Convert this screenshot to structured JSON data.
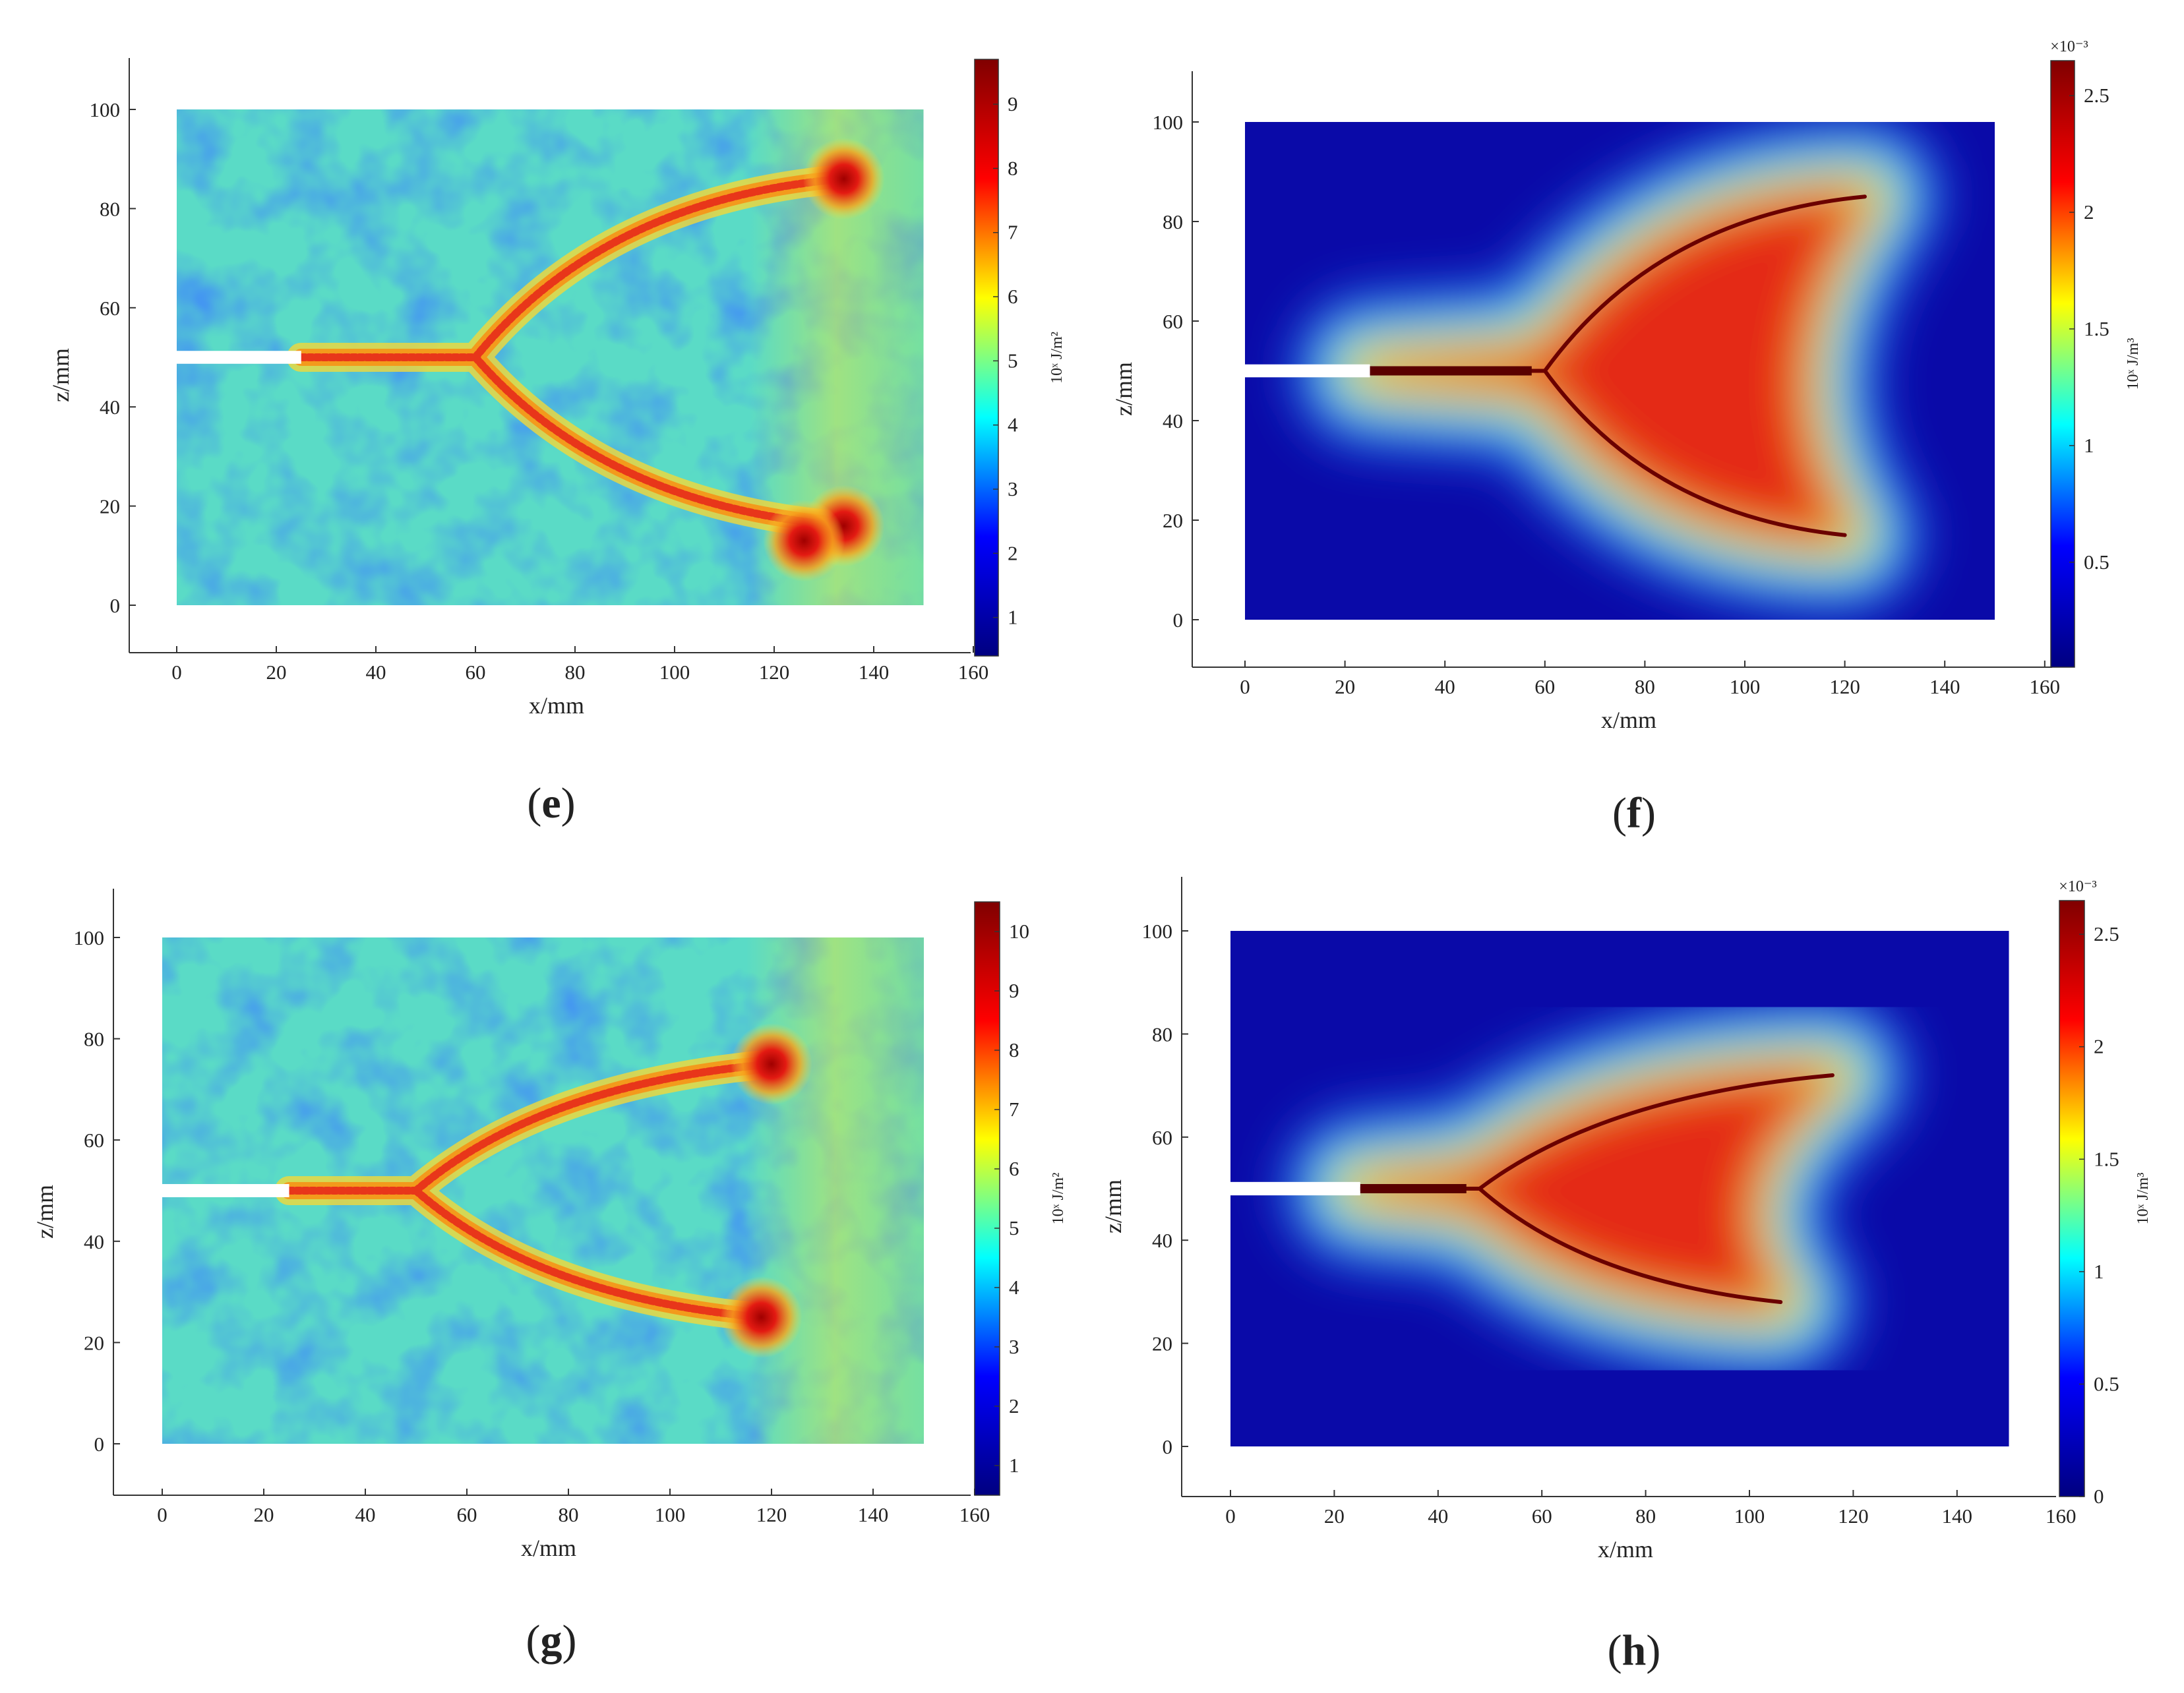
{
  "chart_data": [
    {
      "panel": "e",
      "type": "heatmap",
      "xlabel": "x/mm",
      "ylabel": "z/mm",
      "xlim": [
        -10,
        160
      ],
      "ylim": [
        -10,
        110
      ],
      "xticks": [
        "0",
        "20",
        "40",
        "60",
        "80",
        "100",
        "120",
        "140",
        "160"
      ],
      "yticks": [
        "0",
        "20",
        "40",
        "60",
        "80",
        "100"
      ],
      "colorbar": {
        "label": "10ˣ J/m²",
        "range": [
          0.4,
          9.7
        ],
        "ticks": [
          "1",
          "2",
          "3",
          "4",
          "5",
          "6",
          "7",
          "8",
          "9"
        ],
        "multiplier": ""
      },
      "colormap": "jet",
      "background": "noisy",
      "crack": {
        "notch_end": [
          25,
          50
        ],
        "branch_point": [
          60,
          50
        ],
        "upper_tip": [
          134,
          86
        ],
        "lower_tip": [
          134,
          16
        ]
      },
      "blobs": [
        [
          134,
          86
        ],
        [
          134,
          16
        ],
        [
          126,
          13
        ]
      ]
    },
    {
      "panel": "f",
      "type": "heatmap",
      "xlabel": "x/mm",
      "ylabel": "z/mm",
      "xlim": [
        -10,
        160
      ],
      "ylim": [
        -10,
        110
      ],
      "xticks": [
        "0",
        "20",
        "40",
        "60",
        "80",
        "100",
        "120",
        "140",
        "160"
      ],
      "yticks": [
        "0",
        "20",
        "40",
        "60",
        "80",
        "100"
      ],
      "colorbar": {
        "label": "10ˣ J/m³",
        "range": [
          0.05,
          2.65
        ],
        "ticks": [
          "0.5",
          "1",
          "1.5",
          "2",
          "2.5"
        ],
        "multiplier": "×10⁻³"
      },
      "colormap": "jet",
      "background": "smooth",
      "crack": {
        "notch_end": [
          25,
          50
        ],
        "branch_point": [
          60,
          50
        ],
        "upper_tip": [
          124,
          85
        ],
        "lower_tip": [
          120,
          17
        ]
      }
    },
    {
      "panel": "g",
      "type": "heatmap",
      "xlabel": "x/mm",
      "ylabel": "z/mm",
      "xlim": [
        -10,
        160
      ],
      "ylim": [
        -10,
        110
      ],
      "xticks": [
        "0",
        "20",
        "40",
        "60",
        "80",
        "100",
        "120",
        "140",
        "160"
      ],
      "yticks": [
        "0",
        "20",
        "40",
        "60",
        "80",
        "100"
      ],
      "colorbar": {
        "label": "10ˣ J/m²",
        "range": [
          0.5,
          10.5
        ],
        "ticks": [
          "1",
          "2",
          "3",
          "4",
          "5",
          "6",
          "7",
          "8",
          "9",
          "10"
        ],
        "multiplier": ""
      },
      "colormap": "jet",
      "background": "noisy",
      "crack": {
        "notch_end": [
          25,
          50
        ],
        "branch_point": [
          50,
          50
        ],
        "upper_tip": [
          120,
          75
        ],
        "lower_tip": [
          118,
          25
        ]
      },
      "blobs": [
        [
          120,
          75
        ],
        [
          118,
          25
        ]
      ]
    },
    {
      "panel": "h",
      "type": "heatmap",
      "xlabel": "x/mm",
      "ylabel": "z/mm",
      "xlim": [
        -10,
        160
      ],
      "ylim": [
        -10,
        110
      ],
      "xticks": [
        "0",
        "20",
        "40",
        "60",
        "80",
        "100",
        "120",
        "140",
        "160"
      ],
      "yticks": [
        "0",
        "20",
        "40",
        "60",
        "80",
        "100"
      ],
      "colorbar": {
        "label": "10ˣ J/m³",
        "range": [
          0,
          2.65
        ],
        "ticks": [
          "0",
          "0.5",
          "1",
          "1.5",
          "2",
          "2.5"
        ],
        "multiplier": "×10⁻³"
      },
      "colormap": "jet",
      "background": "smooth",
      "crack": {
        "notch_end": [
          25,
          50
        ],
        "branch_point": [
          48,
          50
        ],
        "upper_tip": [
          116,
          72
        ],
        "lower_tip": [
          106,
          28
        ]
      }
    }
  ]
}
